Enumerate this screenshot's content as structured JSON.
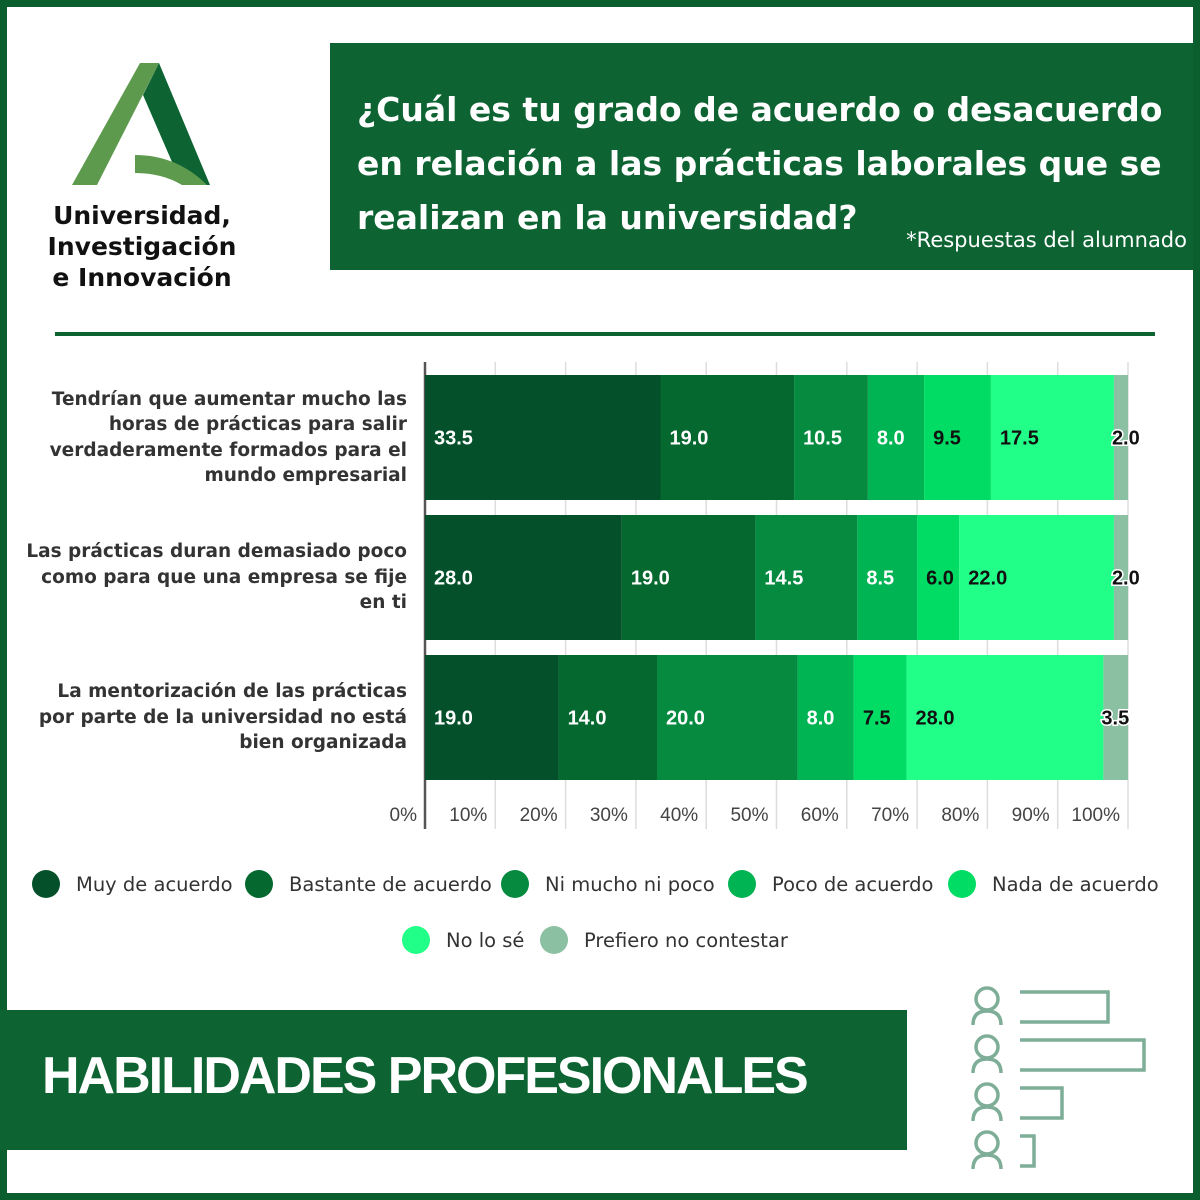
{
  "logo": {
    "text_lines": [
      "Universidad,",
      "Investigación",
      "e Innovación"
    ]
  },
  "header": {
    "title": "¿Cuál es tu grado de acuerdo o desacuerdo en relación a las prácticas laborales que se realizan en la universidad?",
    "subtitle": "*Respuestas del alumnado"
  },
  "chart_data": {
    "type": "bar",
    "orientation": "horizontal-stacked",
    "categories": [
      "Tendrían que aumentar mucho las horas de prácticas para salir verdaderamente formados para el mundo empresarial",
      "Las prácticas duran demasiado poco como para que una empresa se fije en ti",
      "La mentorización de las prácticas por parte de la universidad no está bien organizada"
    ],
    "series": [
      {
        "name": "Muy de acuerdo",
        "color": "#03502a",
        "values": [
          33.5,
          28.0,
          19.0
        ]
      },
      {
        "name": "Bastante de acuerdo",
        "color": "#04682f",
        "values": [
          19.0,
          19.0,
          14.0
        ]
      },
      {
        "name": "Ni mucho ni poco",
        "color": "#068a40",
        "values": [
          10.5,
          14.5,
          20.0
        ]
      },
      {
        "name": "Poco de acuerdo",
        "color": "#00b454",
        "values": [
          8.0,
          8.5,
          8.0
        ]
      },
      {
        "name": "Nada de acuerdo",
        "color": "#00dc64",
        "values": [
          9.5,
          6.0,
          7.5
        ]
      },
      {
        "name": "No lo sé",
        "color": "#22ff88",
        "values": [
          17.5,
          22.0,
          28.0
        ]
      },
      {
        "name": "Prefiero no contestar",
        "color": "#8cc0a2",
        "values": [
          2.0,
          2.0,
          3.5
        ]
      }
    ],
    "xticks": [
      "0%",
      "10%",
      "20%",
      "30%",
      "40%",
      "50%",
      "60%",
      "70%",
      "80%",
      "90%",
      "100%"
    ],
    "xlim": [
      0,
      100
    ],
    "grid": true,
    "legend_position": "bottom"
  },
  "banner": {
    "text": "HABILIDADES PROFESIONALES"
  },
  "icons": {
    "decor": "people-ranking-icon"
  }
}
